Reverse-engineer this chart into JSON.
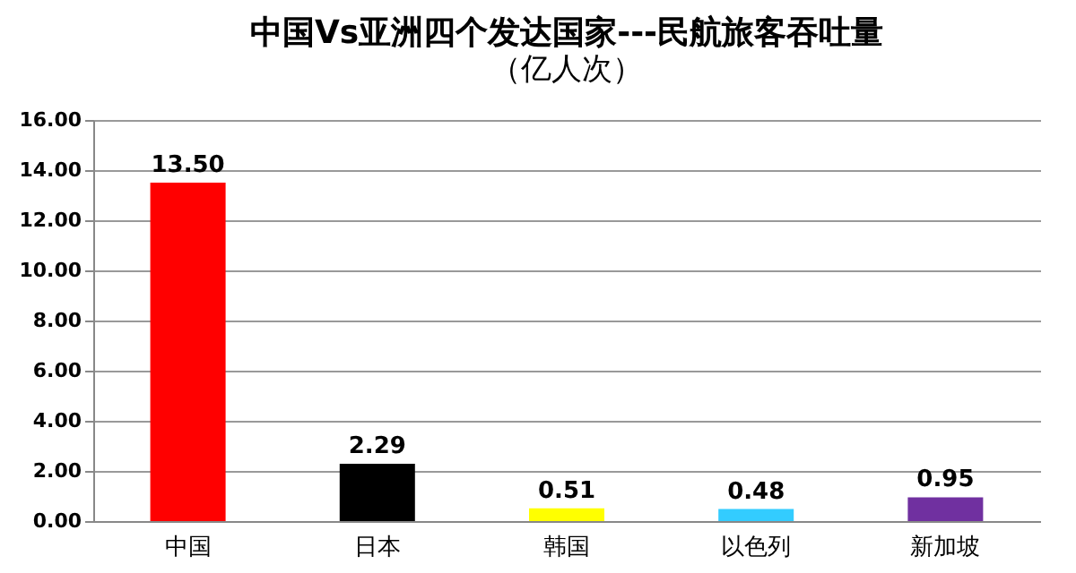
{
  "chart_data": {
    "type": "bar",
    "title": "中国Vs亚洲四个发达国家---民航旅客吞吐量",
    "subtitle": "（亿人次）",
    "categories": [
      "中国",
      "日本",
      "韩国",
      "以色列",
      "新加坡"
    ],
    "values": [
      13.5,
      2.29,
      0.51,
      0.48,
      0.95
    ],
    "colors": [
      "#ff0000",
      "#000000",
      "#ffff00",
      "#33ccff",
      "#7030a0"
    ],
    "value_labels": [
      "13.50",
      "2.29",
      "0.51",
      "0.48",
      "0.95"
    ],
    "ylim": [
      0,
      16
    ],
    "yticks": [
      {
        "value": 0,
        "label": "0.00"
      },
      {
        "value": 2,
        "label": "2.00"
      },
      {
        "value": 4,
        "label": "4.00"
      },
      {
        "value": 6,
        "label": "6.00"
      },
      {
        "value": 8,
        "label": "8.00"
      },
      {
        "value": 10,
        "label": "10.00"
      },
      {
        "value": 12,
        "label": "12.00"
      },
      {
        "value": 14,
        "label": "14.00"
      },
      {
        "value": 16,
        "label": "16.00"
      }
    ],
    "grid": "y"
  }
}
